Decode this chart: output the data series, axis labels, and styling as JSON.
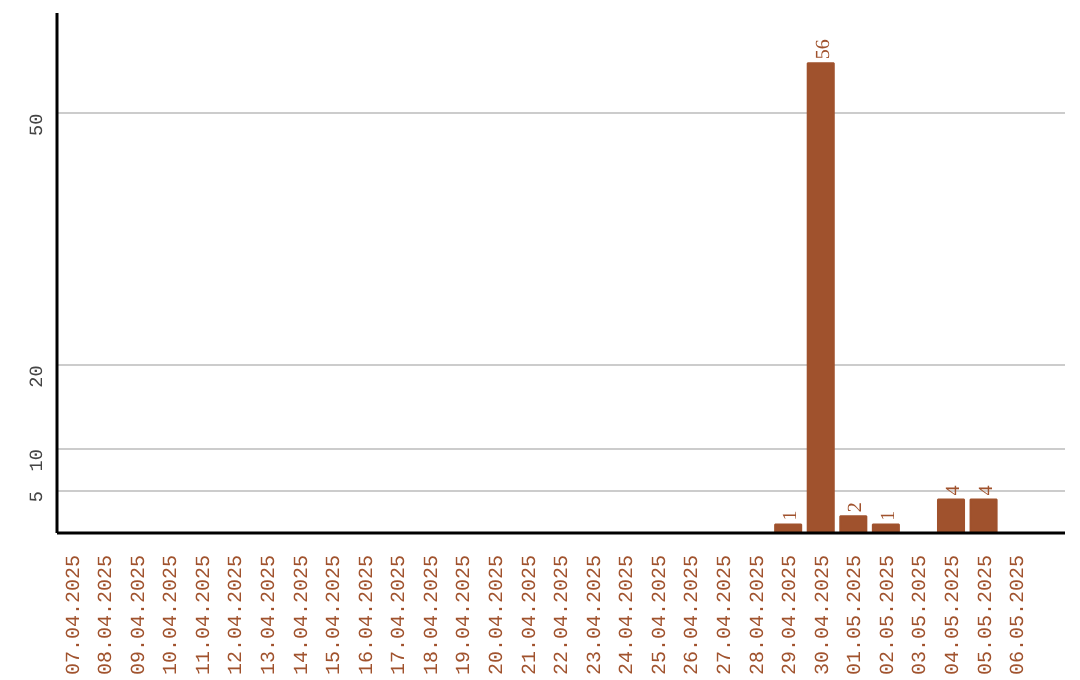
{
  "chart_data": {
    "type": "bar",
    "categories": [
      "07.04.2025",
      "08.04.2025",
      "09.04.2025",
      "10.04.2025",
      "11.04.2025",
      "12.04.2025",
      "13.04.2025",
      "14.04.2025",
      "15.04.2025",
      "16.04.2025",
      "17.04.2025",
      "18.04.2025",
      "19.04.2025",
      "20.04.2025",
      "21.04.2025",
      "22.04.2025",
      "23.04.2025",
      "24.04.2025",
      "25.04.2025",
      "26.04.2025",
      "27.04.2025",
      "28.04.2025",
      "29.04.2025",
      "30.04.2025",
      "01.05.2025",
      "02.05.2025",
      "03.05.2025",
      "04.05.2025",
      "05.05.2025",
      "06.05.2025"
    ],
    "values": [
      0,
      0,
      0,
      0,
      0,
      0,
      0,
      0,
      0,
      0,
      0,
      0,
      0,
      0,
      0,
      0,
      0,
      0,
      0,
      0,
      0,
      0,
      1,
      56,
      2,
      1,
      0,
      4,
      4,
      0
    ],
    "value_labels": [
      null,
      null,
      null,
      null,
      null,
      null,
      null,
      null,
      null,
      null,
      null,
      null,
      null,
      null,
      null,
      null,
      null,
      null,
      null,
      null,
      null,
      null,
      "1",
      "56",
      "2",
      "1",
      null,
      "4",
      "4",
      null
    ],
    "color": "#a0522d",
    "ylim": [
      0,
      62
    ],
    "yticks": [
      5,
      10,
      20,
      50
    ],
    "grid": "y"
  }
}
